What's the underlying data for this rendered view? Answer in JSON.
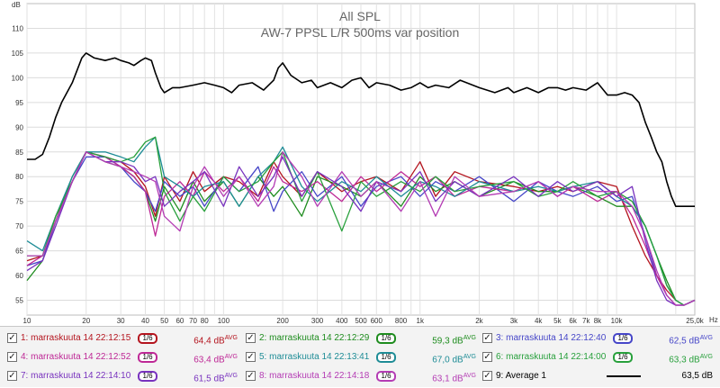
{
  "chart_data": {
    "type": "line",
    "title": "All SPL",
    "subtitle": "AW-7 PPSL L/R 500ms var position",
    "ylabel": "dB",
    "xlabel_unit": "Hz",
    "xscale": "log",
    "xlim": [
      10,
      25000
    ],
    "ylim": [
      52,
      115
    ],
    "y_ticks": [
      55,
      60,
      65,
      70,
      75,
      80,
      85,
      90,
      95,
      100,
      105,
      110
    ],
    "y_unit_label": "dB",
    "x_ticks": [
      {
        "value": 10,
        "label": "10"
      },
      {
        "value": 20,
        "label": "20"
      },
      {
        "value": 30,
        "label": "30"
      },
      {
        "value": 40,
        "label": "40"
      },
      {
        "value": 50,
        "label": "50"
      },
      {
        "value": 60,
        "label": "60"
      },
      {
        "value": 70,
        "label": "70"
      },
      {
        "value": 80,
        "label": "80"
      },
      {
        "value": 100,
        "label": "100"
      },
      {
        "value": 200,
        "label": "200"
      },
      {
        "value": 300,
        "label": "300"
      },
      {
        "value": 400,
        "label": "400"
      },
      {
        "value": 500,
        "label": "500"
      },
      {
        "value": 600,
        "label": "600"
      },
      {
        "value": 800,
        "label": "800"
      },
      {
        "value": 1000,
        "label": "1k"
      },
      {
        "value": 2000,
        "label": "2k"
      },
      {
        "value": 3000,
        "label": "3k"
      },
      {
        "value": 4000,
        "label": "4k"
      },
      {
        "value": 5000,
        "label": "5k"
      },
      {
        "value": 6000,
        "label": "6k"
      },
      {
        "value": 7000,
        "label": "7k"
      },
      {
        "value": 8000,
        "label": "8k"
      },
      {
        "value": 10000,
        "label": "10k"
      },
      {
        "value": 25000,
        "label": "25,0k"
      }
    ],
    "grid": true,
    "series": [
      {
        "id": 1,
        "name": "marraskuuta 14 22:12:15",
        "smoothing": "1/6",
        "value": "64,4 dB",
        "color": "#b4141e",
        "x": [
          10,
          12,
          14,
          17,
          20,
          25,
          30,
          35,
          40,
          45,
          50,
          60,
          70,
          80,
          100,
          120,
          150,
          180,
          200,
          250,
          300,
          400,
          500,
          600,
          800,
          1000,
          1200,
          1500,
          2000,
          3000,
          4000,
          5000,
          6000,
          8000,
          10000,
          12000,
          14000,
          16000,
          18000,
          20000,
          22000,
          25000
        ],
        "y": [
          63,
          64,
          72,
          79,
          85,
          84,
          83,
          81,
          78,
          72,
          80,
          75,
          81,
          77,
          80,
          79,
          76,
          83,
          80,
          76,
          81,
          77,
          79,
          80,
          77,
          83,
          76,
          81,
          79,
          78,
          77,
          78,
          77,
          79,
          78,
          70,
          64,
          60,
          57,
          55,
          54,
          55
        ]
      },
      {
        "id": 2,
        "name": "marraskuuta 14 22:12:29",
        "smoothing": "1/6",
        "value": "59,3 dB",
        "color": "#1e8c1e",
        "x": [
          10,
          12,
          14,
          17,
          20,
          25,
          30,
          35,
          40,
          45,
          50,
          60,
          70,
          80,
          100,
          120,
          150,
          180,
          200,
          250,
          300,
          400,
          500,
          600,
          800,
          1000,
          1200,
          1500,
          2000,
          3000,
          4000,
          5000,
          6000,
          8000,
          10000,
          12000,
          14000,
          16000,
          18000,
          20000,
          22000,
          25000
        ],
        "y": [
          59,
          63,
          71,
          80,
          85,
          83,
          82,
          80,
          77,
          71,
          78,
          73,
          79,
          75,
          79,
          74,
          80,
          76,
          78,
          72,
          80,
          78,
          76,
          79,
          74,
          80,
          77,
          79,
          76,
          79,
          77,
          77,
          78,
          76,
          74,
          74,
          70,
          64,
          59,
          55,
          54,
          55
        ]
      },
      {
        "id": 3,
        "name": "marraskuuta 14 22:12:40",
        "smoothing": "1/6",
        "value": "62,5 dB",
        "color": "#4646c8",
        "x": [
          10,
          12,
          14,
          17,
          20,
          25,
          30,
          35,
          40,
          45,
          50,
          60,
          70,
          80,
          100,
          120,
          150,
          180,
          200,
          250,
          300,
          400,
          500,
          600,
          800,
          1000,
          1200,
          1500,
          2000,
          3000,
          4000,
          5000,
          6000,
          8000,
          10000,
          12000,
          14000,
          16000,
          18000,
          20000,
          22000,
          25000
        ],
        "y": [
          62,
          63,
          71,
          79,
          84,
          84,
          82,
          79,
          77,
          73,
          79,
          76,
          78,
          74,
          80,
          77,
          82,
          73,
          77,
          81,
          76,
          80,
          74,
          78,
          80,
          76,
          79,
          77,
          80,
          75,
          79,
          77,
          76,
          78,
          75,
          76,
          68,
          60,
          56,
          54,
          54,
          55
        ]
      },
      {
        "id": 4,
        "name": "marraskuuta 14 22:12:52",
        "smoothing": "1/6",
        "value": "63,4 dB",
        "color": "#be2896",
        "x": [
          10,
          12,
          14,
          17,
          20,
          25,
          30,
          35,
          40,
          45,
          50,
          60,
          70,
          80,
          100,
          120,
          150,
          180,
          200,
          250,
          300,
          400,
          500,
          600,
          800,
          1000,
          1200,
          1500,
          2000,
          3000,
          4000,
          5000,
          6000,
          8000,
          10000,
          12000,
          14000,
          16000,
          18000,
          20000,
          22000,
          25000
        ],
        "y": [
          62,
          64,
          71,
          79,
          85,
          84,
          82,
          80,
          77,
          68,
          76,
          79,
          76,
          81,
          77,
          80,
          75,
          82,
          79,
          77,
          79,
          75,
          80,
          77,
          81,
          78,
          80,
          76,
          78,
          77,
          79,
          76,
          78,
          75,
          77,
          72,
          66,
          60,
          56,
          54,
          54,
          55
        ]
      },
      {
        "id": 5,
        "name": "marraskuuta 14 22:13:41",
        "smoothing": "1/6",
        "value": "67,0 dB",
        "color": "#1e8c96",
        "x": [
          10,
          12,
          14,
          17,
          20,
          25,
          30,
          35,
          40,
          45,
          50,
          60,
          70,
          80,
          100,
          120,
          150,
          180,
          200,
          250,
          300,
          400,
          500,
          600,
          800,
          1000,
          1200,
          1500,
          2000,
          3000,
          4000,
          5000,
          6000,
          8000,
          10000,
          12000,
          14000,
          16000,
          18000,
          20000,
          22000,
          25000
        ],
        "y": [
          67,
          65,
          72,
          80,
          85,
          85,
          84,
          83,
          86,
          88,
          80,
          78,
          76,
          78,
          79,
          74,
          80,
          83,
          86,
          78,
          75,
          79,
          77,
          80,
          76,
          79,
          78,
          76,
          79,
          77,
          78,
          77,
          78,
          79,
          76,
          74,
          70,
          64,
          58,
          55,
          54,
          55
        ]
      },
      {
        "id": 6,
        "name": "marraskuuta 14 22:14:00",
        "smoothing": "1/6",
        "value": "63,3 dB",
        "color": "#28a03c",
        "x": [
          10,
          12,
          14,
          17,
          20,
          25,
          30,
          35,
          40,
          45,
          50,
          60,
          70,
          80,
          100,
          120,
          150,
          180,
          200,
          250,
          300,
          400,
          500,
          600,
          800,
          1000,
          1200,
          1500,
          2000,
          3000,
          4000,
          5000,
          6000,
          8000,
          10000,
          12000,
          14000,
          16000,
          18000,
          20000,
          22000,
          25000
        ],
        "y": [
          64,
          64,
          72,
          79,
          85,
          84,
          83,
          84,
          87,
          88,
          77,
          71,
          76,
          73,
          80,
          77,
          79,
          83,
          85,
          75,
          81,
          69,
          79,
          76,
          79,
          77,
          80,
          77,
          78,
          79,
          76,
          77,
          79,
          76,
          77,
          75,
          70,
          64,
          58,
          55,
          54,
          55
        ]
      },
      {
        "id": 7,
        "name": "marraskuuta 14 22:14:10",
        "smoothing": "1/6",
        "value": "61,5 dB",
        "color": "#7832be",
        "x": [
          10,
          12,
          14,
          17,
          20,
          25,
          30,
          35,
          40,
          45,
          50,
          60,
          70,
          80,
          100,
          120,
          150,
          180,
          200,
          250,
          300,
          400,
          500,
          600,
          800,
          1000,
          1200,
          1500,
          2000,
          3000,
          4000,
          5000,
          6000,
          8000,
          10000,
          12000,
          14000,
          16000,
          18000,
          20000,
          22000,
          25000
        ],
        "y": [
          61,
          63,
          70,
          79,
          85,
          83,
          83,
          82,
          79,
          80,
          74,
          77,
          79,
          81,
          74,
          82,
          76,
          80,
          84,
          76,
          81,
          78,
          73,
          79,
          77,
          81,
          75,
          79,
          76,
          80,
          76,
          79,
          77,
          79,
          76,
          78,
          67,
          59,
          55,
          54,
          54,
          55
        ]
      },
      {
        "id": 8,
        "name": "marraskuuta 14 22:14:18",
        "smoothing": "1/6",
        "value": "63,1 dB",
        "color": "#b43cb4",
        "x": [
          10,
          12,
          14,
          17,
          20,
          25,
          30,
          35,
          40,
          45,
          50,
          60,
          70,
          80,
          100,
          120,
          150,
          180,
          200,
          250,
          300,
          400,
          500,
          600,
          800,
          1000,
          1200,
          1500,
          2000,
          3000,
          4000,
          5000,
          6000,
          8000,
          10000,
          12000,
          14000,
          16000,
          18000,
          20000,
          22000,
          25000
        ],
        "y": [
          64,
          64,
          71,
          79,
          85,
          83,
          82,
          81,
          80,
          79,
          72,
          69,
          78,
          82,
          76,
          80,
          74,
          78,
          85,
          80,
          74,
          81,
          76,
          79,
          73,
          79,
          72,
          80,
          76,
          77,
          79,
          76,
          78,
          77,
          77,
          74,
          68,
          61,
          56,
          54,
          54,
          55
        ]
      },
      {
        "id": 9,
        "name": "Average 1",
        "value": "63,5 dB",
        "color": "#000000",
        "x": [
          10,
          11,
          12,
          13,
          14,
          15,
          17,
          19,
          20,
          22,
          25,
          28,
          30,
          33,
          35,
          38,
          40,
          43,
          45,
          48,
          50,
          55,
          60,
          70,
          80,
          90,
          100,
          110,
          120,
          140,
          160,
          180,
          190,
          200,
          220,
          250,
          280,
          300,
          350,
          400,
          450,
          500,
          550,
          600,
          700,
          800,
          900,
          1000,
          1100,
          1200,
          1400,
          1600,
          2000,
          2400,
          2800,
          3000,
          3500,
          4000,
          4500,
          5000,
          5500,
          6000,
          7000,
          8000,
          9000,
          10000,
          11000,
          12000,
          13000,
          14000,
          15000,
          16000,
          17000,
          18000,
          19000,
          20000,
          22000,
          25000
        ],
        "y": [
          83.5,
          83.5,
          84.5,
          88,
          92,
          95,
          99,
          104,
          105,
          104,
          103.5,
          104,
          103.5,
          103,
          102.5,
          103.5,
          104,
          103.5,
          101,
          98,
          97,
          98,
          98,
          98.5,
          99,
          98.5,
          98,
          97,
          98.5,
          99,
          97.5,
          99.5,
          102,
          103,
          100.5,
          99,
          99.5,
          98,
          99,
          98,
          99.5,
          100,
          98,
          99,
          98.5,
          97.5,
          98,
          99,
          98,
          98.5,
          98,
          99.5,
          98,
          97,
          98,
          97,
          98,
          97,
          98,
          98,
          97.5,
          98,
          97.5,
          99,
          96.5,
          96.5,
          97,
          96.5,
          95,
          91,
          88,
          85,
          83,
          79,
          76,
          74,
          74,
          74
        ]
      }
    ]
  },
  "legend": {
    "items": [
      {
        "label": "1: marraskuuta 14 22:12:15",
        "smooth": "1/6",
        "value": "64,4 dB",
        "sup": "AVG",
        "checked": "✓"
      },
      {
        "label": "2: marraskuuta 14 22:12:29",
        "smooth": "1/6",
        "value": "59,3 dB",
        "sup": "AVG",
        "checked": "✓"
      },
      {
        "label": "3: marraskuuta 14 22:12:40",
        "smooth": "1/6",
        "value": "62,5 dB",
        "sup": "AVG",
        "checked": "✓"
      },
      {
        "label": "4: marraskuuta 14 22:12:52",
        "smooth": "1/6",
        "value": "63,4 dB",
        "sup": "AVG",
        "checked": "✓"
      },
      {
        "label": "5: marraskuuta 14 22:13:41",
        "smooth": "1/6",
        "value": "67,0 dB",
        "sup": "AVG",
        "checked": "✓"
      },
      {
        "label": "6: marraskuuta 14 22:14:00",
        "smooth": "1/6",
        "value": "63,3 dB",
        "sup": "AVG",
        "checked": "✓"
      },
      {
        "label": "7: marraskuuta 14 22:14:10",
        "smooth": "1/6",
        "value": "61,5 dB",
        "sup": "AVG",
        "checked": "✓"
      },
      {
        "label": "8: marraskuuta 14 22:14:18",
        "smooth": "1/6",
        "value": "63,1 dB",
        "sup": "AVG",
        "checked": "✓"
      },
      {
        "label": "9: Average 1",
        "value": "63,5 dB",
        "checked": "✓"
      }
    ]
  }
}
